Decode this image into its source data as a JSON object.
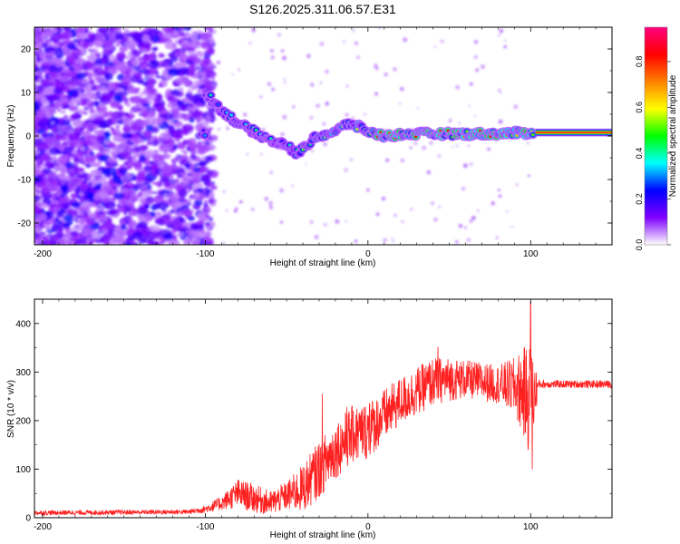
{
  "title": "S126.2025.311.06.57.E31",
  "chart_data": [
    {
      "type": "heatmap",
      "xlabel": "Height of straight line (km)",
      "ylabel": "Frequency (Hz)",
      "xlim": [
        -205,
        150
      ],
      "ylim": [
        -25,
        25
      ],
      "x_ticks": [
        -200,
        -100,
        0,
        100
      ],
      "y_ticks": [
        -20,
        -10,
        0,
        10,
        20
      ],
      "colorbar": {
        "label": "Normalized spectral amplitude",
        "range": [
          0.0,
          0.95
        ],
        "ticks": [
          0.0,
          0.2,
          0.4,
          0.6,
          0.8
        ],
        "tick_labels": [
          "0.0",
          "0.2",
          "0.4",
          "0.6",
          "0.8"
        ],
        "colors": [
          "#ffffff",
          "#8000ff",
          "#0000ff",
          "#00ffff",
          "#00ff00",
          "#ffff00",
          "#ff8000",
          "#ff0000",
          "#ff0080"
        ]
      },
      "ridge": {
        "description_points_km_hz": [
          [
            -100,
            10
          ],
          [
            -90,
            6
          ],
          [
            -80,
            3
          ],
          [
            -70,
            1
          ],
          [
            -60,
            -1
          ],
          [
            -50,
            -2
          ],
          [
            -45,
            -4
          ],
          [
            -40,
            -3
          ],
          [
            -35,
            -1
          ],
          [
            -30,
            0
          ],
          [
            -20,
            1
          ],
          [
            -12,
            3
          ],
          [
            -5,
            2
          ],
          [
            0,
            1
          ],
          [
            10,
            0
          ],
          [
            25,
            0.5
          ],
          [
            50,
            0.5
          ],
          [
            75,
            0.5
          ],
          [
            95,
            0.7
          ],
          [
            100,
            0.8
          ],
          [
            150,
            0.8
          ]
        ]
      },
      "line_segment": {
        "x_start": 103,
        "x_end": 150,
        "y": 0.8,
        "amplitude": 0.9
      }
    },
    {
      "type": "line",
      "xlabel": "Height of straight line (km)",
      "ylabel": "SNR (10 * v/v)",
      "xlim": [
        -205,
        150
      ],
      "ylim": [
        0,
        450
      ],
      "x_ticks": [
        -200,
        -100,
        0,
        100
      ],
      "y_ticks": [
        0,
        100,
        200,
        300,
        400
      ],
      "series": [
        {
          "name": "SNR",
          "color": "#ff2020",
          "envelope_x": [
            -205,
            -110,
            -100,
            -90,
            -80,
            -70,
            -60,
            -50,
            -40,
            -30,
            -20,
            -10,
            0,
            10,
            20,
            30,
            40,
            50,
            60,
            70,
            80,
            90,
            95,
            100,
            105,
            110,
            120,
            130,
            140,
            150
          ],
          "envelope_y": [
            10,
            12,
            18,
            30,
            50,
            40,
            30,
            45,
            60,
            100,
            140,
            170,
            180,
            210,
            240,
            260,
            280,
            285,
            285,
            280,
            275,
            270,
            260,
            240,
            275,
            275,
            275,
            275,
            275,
            275
          ],
          "noise_amplitude": [
            5,
            5,
            8,
            15,
            30,
            30,
            25,
            30,
            50,
            60,
            60,
            60,
            60,
            55,
            50,
            50,
            50,
            45,
            40,
            40,
            40,
            60,
            90,
            120,
            10,
            8,
            8,
            8,
            8,
            8
          ],
          "peaks": [
            [
              -28,
              255
            ],
            [
              -13,
              228
            ],
            [
              -9,
              220
            ],
            [
              1,
              235
            ],
            [
              43,
              352
            ],
            [
              100,
              445
            ],
            [
              101,
              100
            ]
          ]
        }
      ]
    }
  ]
}
